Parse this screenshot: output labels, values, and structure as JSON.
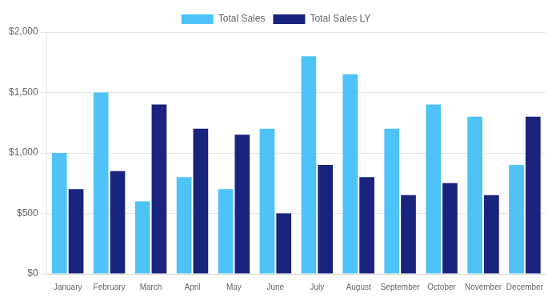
{
  "chart_data": {
    "type": "bar",
    "categories": [
      "January",
      "February",
      "March",
      "April",
      "May",
      "June",
      "July",
      "August",
      "September",
      "October",
      "November",
      "December"
    ],
    "series": [
      {
        "name": "Total Sales",
        "color": "#4FC3F7",
        "values": [
          1000,
          1500,
          600,
          800,
          700,
          1200,
          1800,
          1650,
          1200,
          1400,
          1300,
          900
        ]
      },
      {
        "name": "Total Sales LY",
        "color": "#1A237E",
        "values": [
          700,
          850,
          1400,
          1200,
          1150,
          500,
          900,
          800,
          650,
          750,
          650,
          1300
        ]
      }
    ],
    "ylim": [
      0,
      2000
    ],
    "yticks": [
      {
        "value": 0,
        "label": "$0"
      },
      {
        "value": 500,
        "label": "$500"
      },
      {
        "value": 1000,
        "label": "$1,000"
      },
      {
        "value": 1500,
        "label": "$1,500"
      },
      {
        "value": 2000,
        "label": "$2,000"
      }
    ],
    "grid": true,
    "legend": "top"
  }
}
